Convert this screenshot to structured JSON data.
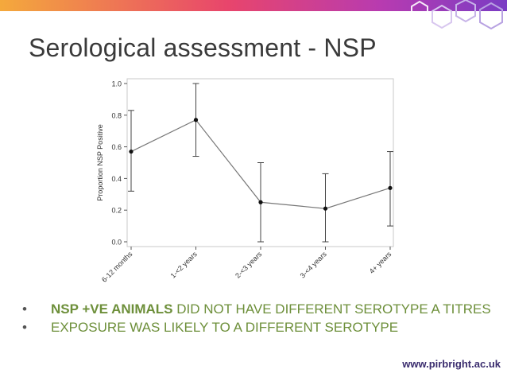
{
  "title": "Serological assessment - NSP",
  "colors": {
    "accent_orange": "#f4a93c",
    "accent_pink": "#e8456c",
    "accent_purple": "#7a3cc4",
    "bullet_text": "#6d8f3a",
    "footer_text": "#3a2c6e"
  },
  "chart_data": {
    "type": "line",
    "ylabel": "Proportion NSP Positive",
    "xlabel": "",
    "categories": [
      "6-12 months",
      "1-<2 years",
      "2-<3 years",
      "3-<4 years",
      "4+ years"
    ],
    "y_ticks": [
      "0.0",
      "0.2",
      "0.4",
      "0.6",
      "0.8",
      "1.0"
    ],
    "ylim": [
      0,
      1
    ],
    "grid": false,
    "series": [
      {
        "values": [
          0.57,
          0.77,
          0.25,
          0.21,
          0.34
        ],
        "lower": [
          0.32,
          0.54,
          0.0,
          0.0,
          0.1
        ],
        "upper": [
          0.83,
          1.0,
          0.5,
          0.43,
          0.57
        ]
      }
    ]
  },
  "bullets": [
    {
      "strong": "NSP +VE ANIMALS",
      "text": " DID NOT HAVE DIFFERENT SEROTYPE A TITRES"
    },
    {
      "strong": "",
      "text": "EXPOSURE WAS LIKELY TO A DIFFERENT SEROTYPE"
    }
  ],
  "footer_url": "www.pirbright.ac.uk"
}
